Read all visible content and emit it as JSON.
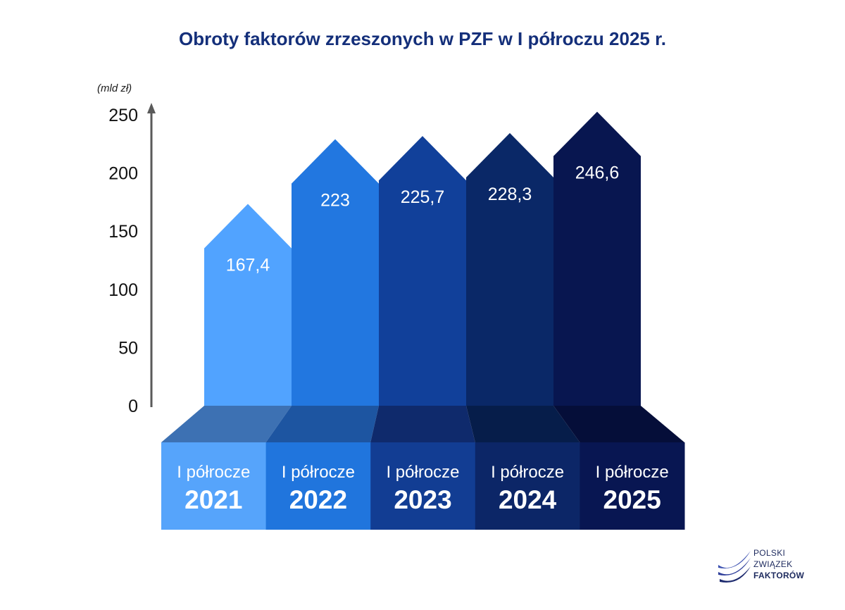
{
  "chart_data": {
    "type": "bar",
    "title": "Obroty faktorów zrzeszonych w PZF w I półroczu 2025 r.",
    "ylabel": "(mld zł)",
    "ylim": [
      0,
      250
    ],
    "yticks": [
      "0",
      "50",
      "100",
      "150",
      "200",
      "250"
    ],
    "categories": [
      {
        "line1": "I półrocze",
        "line2": "2021"
      },
      {
        "line1": "I półrocze",
        "line2": "2022"
      },
      {
        "line1": "I półrocze",
        "line2": "2023"
      },
      {
        "line1": "I półrocze",
        "line2": "2024"
      },
      {
        "line1": "I półrocze",
        "line2": "2025"
      }
    ],
    "values": [
      167.4,
      223,
      225.7,
      228.3,
      246.6
    ],
    "value_labels": [
      "167,4",
      "223",
      "225,7",
      "228,3",
      "246,6"
    ],
    "colors": [
      "#51a3ff",
      "#2277e0",
      "#11409a",
      "#0a2867",
      "#081650"
    ],
    "base_colors": [
      "#56a4fb",
      "#2075dd",
      "#123d93",
      "#0c2667",
      "#081652"
    ],
    "base_top_colors": [
      "#3d71b3",
      "#1d55a1",
      "#0f2a6c",
      "#061d4a",
      "#050e39"
    ]
  },
  "logo": {
    "line1": "POLSKI",
    "line2": "ZWIĄZEK",
    "line3": "FAKTORÓW"
  }
}
